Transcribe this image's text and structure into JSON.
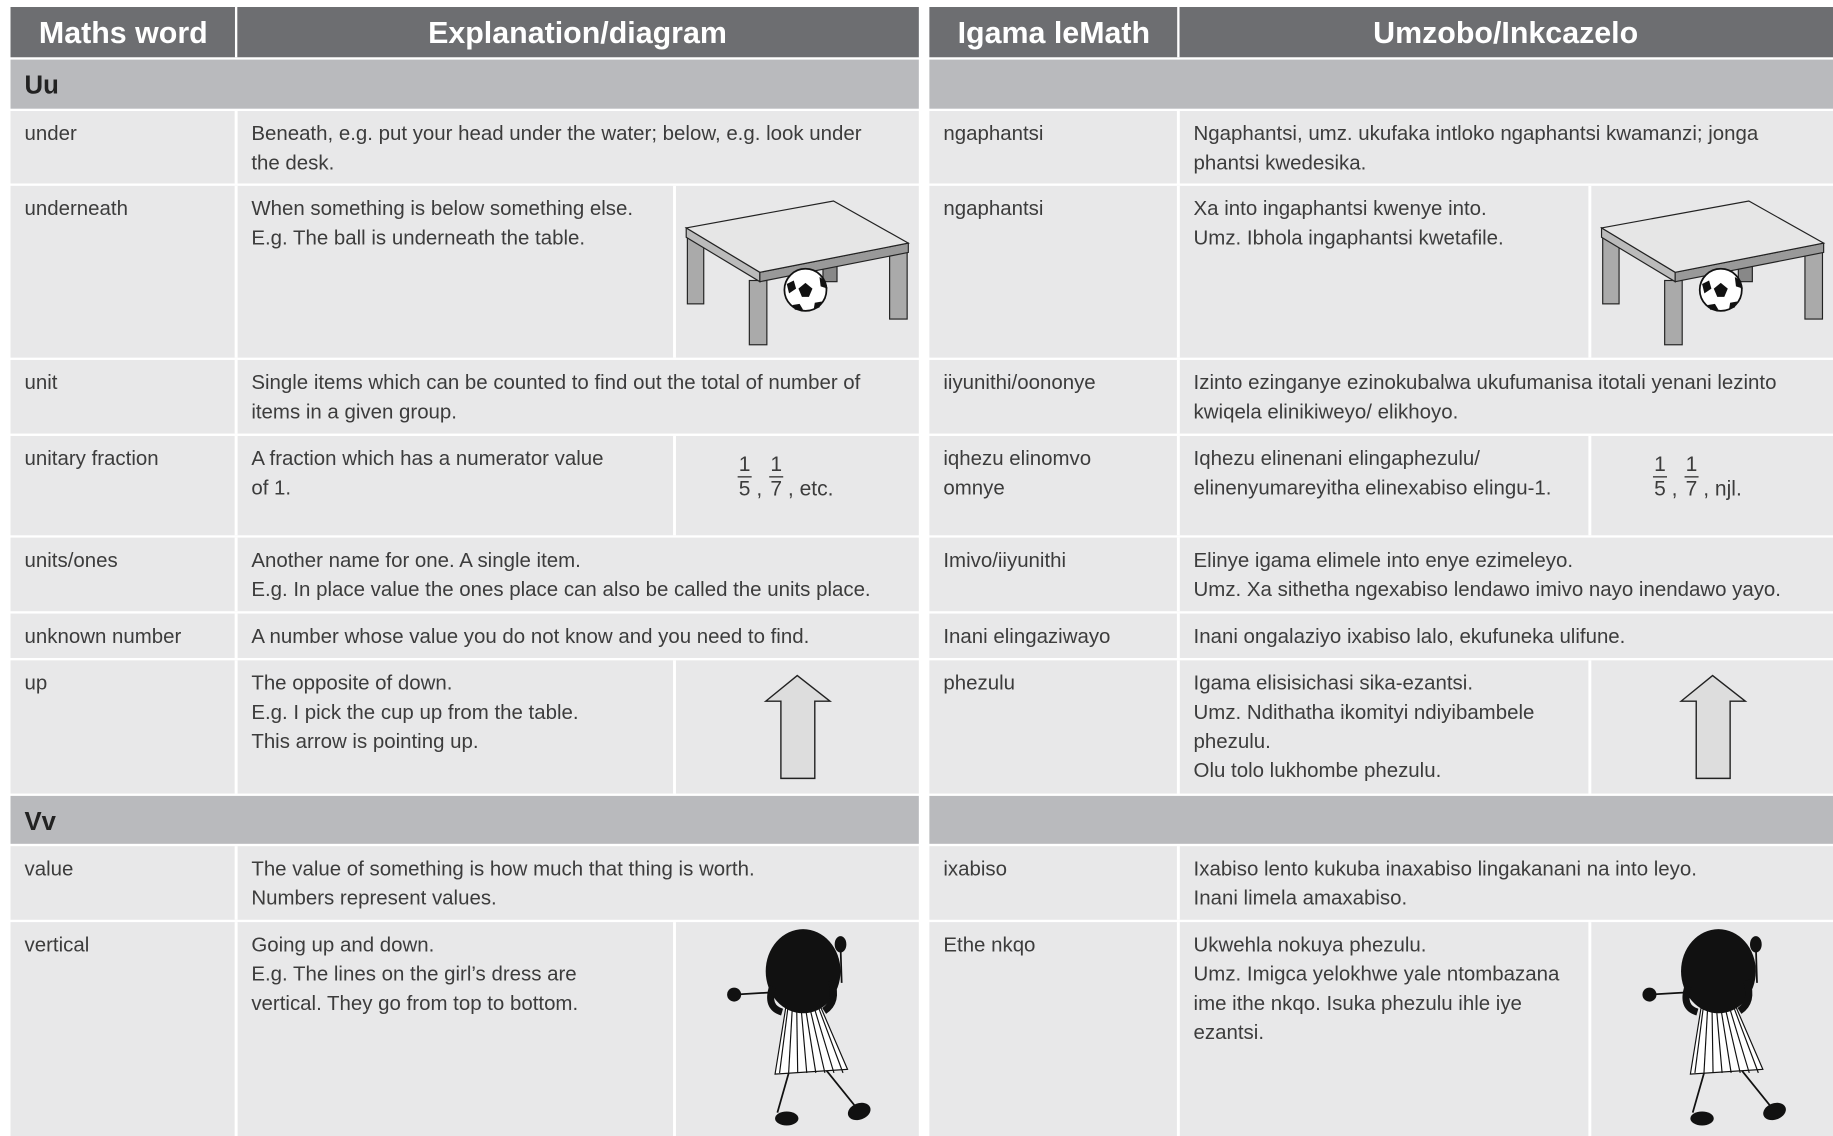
{
  "tables": [
    {
      "headers": [
        "Maths word",
        "Explanation/diagram"
      ],
      "sections": [
        {
          "letter": "Uu",
          "rows": [
            {
              "word": [
                "under"
              ],
              "explanation": [
                "Beneath, e.g. put your head under the water; below, e.g. look under",
                "the desk."
              ]
            },
            {
              "word": [
                "underneath"
              ],
              "explanation": [
                "When something is below something else.",
                "E.g. The ball is underneath the table."
              ]
            },
            {
              "word": [
                "unit"
              ],
              "explanation": [
                "Single items which can be counted to find out the total of number of",
                "items in a given group."
              ]
            },
            {
              "word": [
                "unitary fraction"
              ],
              "explanation": [
                "A fraction which has a numerator value",
                "of 1."
              ],
              "fraction": {
                "items": [
                  {
                    "numerator": "1",
                    "denominator": "5"
                  },
                  {
                    "numerator": "1",
                    "denominator": "7"
                  }
                ],
                "separator": ",",
                "suffix": ", etc."
              }
            },
            {
              "word": [
                "units/ones"
              ],
              "explanation": [
                "Another name for one. A single item.",
                "E.g. In place value the ones place can also be called the units place."
              ]
            },
            {
              "word": [
                "unknown number"
              ],
              "explanation": [
                "A number whose value you do not know and you need to find."
              ]
            },
            {
              "word": [
                "up"
              ],
              "explanation": [
                "The opposite of down.",
                "E.g. I pick the cup up from the table.",
                "This arrow is pointing up."
              ]
            }
          ]
        },
        {
          "letter": "Vv",
          "rows": [
            {
              "word": [
                "value"
              ],
              "explanation": [
                "The value of something is how much that thing is worth.",
                "Numbers represent values."
              ]
            },
            {
              "word": [
                "vertical"
              ],
              "explanation": [
                "Going up and down.",
                "E.g. The lines on the girl’s dress are",
                "vertical. They go from top to bottom."
              ]
            }
          ]
        }
      ]
    },
    {
      "headers": [
        "Igama leMath",
        "Umzobo/Inkcazelo"
      ],
      "sections": [
        {
          "rows": [
            {
              "word": [
                "ngaphantsi"
              ],
              "explanation": [
                "Ngaphantsi, umz. ukufaka intloko ngaphantsi kwamanzi; jonga",
                "phantsi kwedesika."
              ]
            },
            {
              "word": [
                "ngaphantsi"
              ],
              "explanation": [
                "Xa into ingaphantsi kwenye into.",
                "Umz. Ibhola ingaphantsi kwetafile."
              ]
            },
            {
              "word": [
                "iiyunithi/oononye"
              ],
              "explanation": [
                "Izinto ezinganye ezinokubalwa ukufumanisa itotali yenani lezinto",
                "kwiqela elinikiweyo/ elikhoyo."
              ]
            },
            {
              "word": [
                "iqhezu elinomvo",
                "omnye"
              ],
              "explanation": [
                "Iqhezu elinenani elingaphezulu/",
                "elinenyumareyitha elinexabiso elingu-1."
              ],
              "fraction": {
                "items": [
                  {
                    "numerator": "1",
                    "denominator": "5"
                  },
                  {
                    "numerator": "1",
                    "denominator": "7"
                  }
                ],
                "separator": ",",
                "suffix": ", njl."
              }
            },
            {
              "word": [
                "Imivo/iiyunithi"
              ],
              "explanation": [
                "Elinye igama elimele into enye ezimeleyo.",
                "Umz. Xa sithetha ngexabiso lendawo imivo nayo inendawo yayo."
              ]
            },
            {
              "word": [
                "Inani elingaziwayo"
              ],
              "explanation": [
                "Inani ongalaziyo ixabiso lalo, ekufuneka ulifune."
              ]
            },
            {
              "word": [
                "phezulu"
              ],
              "explanation": [
                "Igama elisisichasi sika-ezantsi.",
                "Umz. Ndithatha ikomityi ndiyibambele",
                "phezulu.",
                "Olu tolo lukhombe phezulu."
              ]
            }
          ]
        },
        {
          "rows": [
            {
              "word": [
                "ixabiso"
              ],
              "explanation": [
                "Ixabiso lento kukuba inaxabiso lingakanani na into leyo.",
                "Inani limela amaxabiso."
              ]
            },
            {
              "word": [
                "Ethe nkqo"
              ],
              "explanation": [
                "Ukwehla nokuya phezulu.",
                "Umz. Imigca yelokhwe yale ntombazana",
                "ime ithe nkqo. Isuka phezulu ihle iye",
                "ezantsi."
              ]
            }
          ]
        }
      ]
    }
  ]
}
